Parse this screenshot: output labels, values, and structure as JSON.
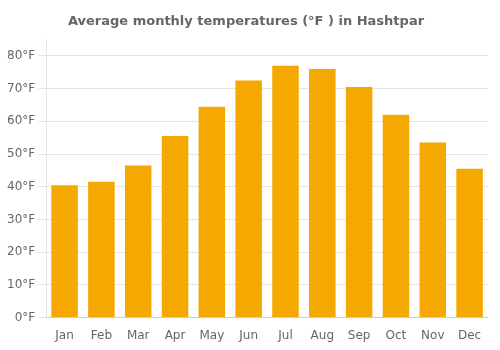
{
  "chart_data": {
    "type": "bar",
    "title": "Average monthly temperatures (°F ) in Hashtpar",
    "categories": [
      "Jan",
      "Feb",
      "Mar",
      "Apr",
      "May",
      "Jun",
      "Jul",
      "Aug",
      "Sep",
      "Oct",
      "Nov",
      "Dec"
    ],
    "values": [
      40.5,
      41.5,
      46.5,
      55.5,
      64.5,
      72.5,
      77.0,
      76.0,
      70.5,
      62.0,
      53.5,
      45.5
    ],
    "color": "#F5A800",
    "ylim": [
      0,
      85
    ],
    "yticks": [
      {
        "value": 0,
        "label": "0°F"
      },
      {
        "value": 10,
        "label": "10°F"
      },
      {
        "value": 20,
        "label": "20°F"
      },
      {
        "value": 30,
        "label": "30°F"
      },
      {
        "value": 40,
        "label": "40°F"
      },
      {
        "value": 50,
        "label": "50°F"
      },
      {
        "value": 60,
        "label": "60°F"
      },
      {
        "value": 70,
        "label": "70°F"
      },
      {
        "value": 80,
        "label": "80°F"
      }
    ],
    "grid": true
  }
}
